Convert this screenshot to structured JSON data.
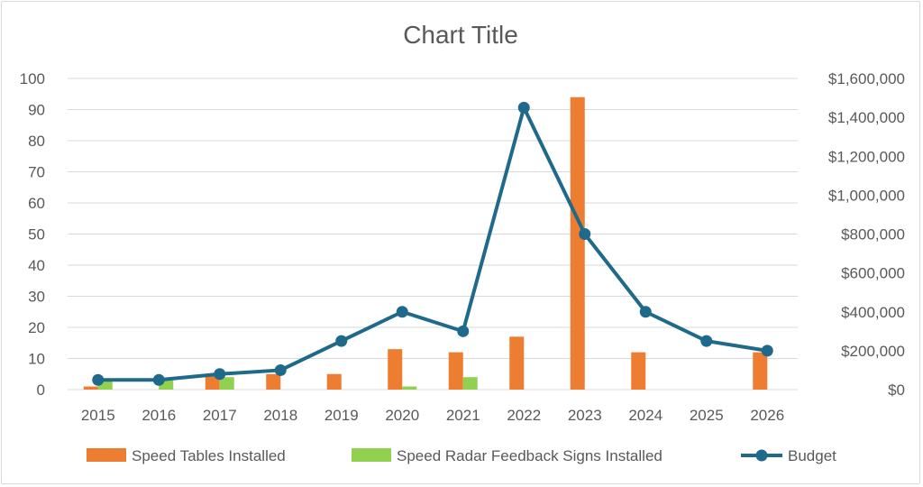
{
  "chart_data": {
    "type": "bar",
    "title": "Chart Title",
    "categories": [
      "2015",
      "2016",
      "2017",
      "2018",
      "2019",
      "2020",
      "2021",
      "2022",
      "2023",
      "2024",
      "2025",
      "2026"
    ],
    "series": [
      {
        "name": "Speed Tables Installed",
        "type": "bar",
        "axis": "left",
        "color": "#ED7D31",
        "values": [
          1,
          0,
          5,
          5,
          5,
          13,
          12,
          17,
          94,
          12,
          0,
          12
        ]
      },
      {
        "name": "Speed Radar Feedback Signs Installed",
        "type": "bar",
        "axis": "left",
        "color": "#92D050",
        "values": [
          3,
          3,
          4,
          0,
          0,
          1,
          4,
          0,
          0,
          0,
          0,
          0
        ]
      },
      {
        "name": "Budget",
        "type": "line",
        "axis": "right",
        "color": "#1F6A8A",
        "values": [
          50000,
          50000,
          80000,
          100000,
          250000,
          400000,
          300000,
          1450000,
          800000,
          400000,
          250000,
          200000
        ]
      }
    ],
    "y_left": {
      "ylim": [
        0,
        100
      ],
      "ticks": [
        "0",
        "10",
        "20",
        "30",
        "40",
        "50",
        "60",
        "70",
        "80",
        "90",
        "100"
      ]
    },
    "y_right": {
      "ylim": [
        0,
        1600000
      ],
      "ticks": [
        "$0",
        "$200,000",
        "$400,000",
        "$600,000",
        "$800,000",
        "$1,000,000",
        "$1,200,000",
        "$1,400,000",
        "$1,600,000"
      ]
    },
    "grid": true,
    "legend_position": "bottom"
  }
}
